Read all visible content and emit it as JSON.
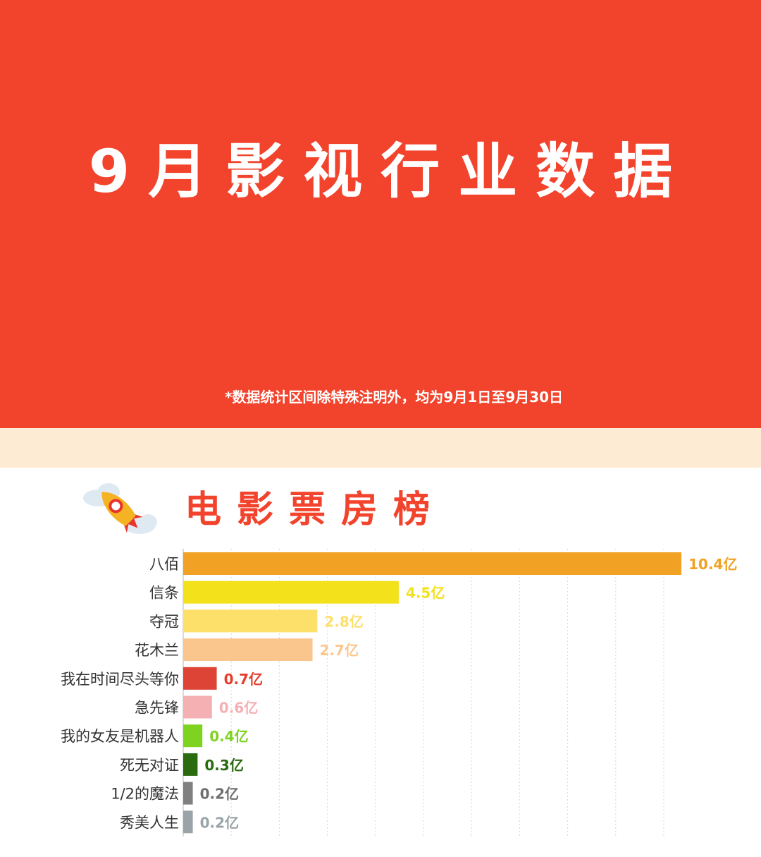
{
  "header": {
    "title": "9月影视行业数据",
    "note": "*数据统计区间除特殊注明外，均为9月1日至9月30日"
  },
  "section": {
    "title": "电影票房榜",
    "icon": "rocket-icon"
  },
  "chart_data": {
    "type": "bar",
    "orientation": "horizontal",
    "title": "电影票房榜",
    "unit": "亿",
    "categories": [
      "八佰",
      "信条",
      "夺冠",
      "花木兰",
      "我在时间尽头等你",
      "急先锋",
      "我的女友是机器人",
      "死无对证",
      "1/2的魔法",
      "秀美人生"
    ],
    "values": [
      10.4,
      4.5,
      2.8,
      2.7,
      0.7,
      0.6,
      0.4,
      0.3,
      0.2,
      0.2
    ],
    "value_labels": [
      "10.4亿",
      "4.5亿",
      "2.8亿",
      "2.7亿",
      "0.7亿",
      "0.6亿",
      "0.4亿",
      "0.3亿",
      "0.2亿",
      "0.2亿"
    ],
    "colors": [
      "#f1a123",
      "#f3e11c",
      "#fde06a",
      "#fbc68e",
      "#de4436",
      "#f4b0b3",
      "#7ed321",
      "#2a6b10",
      "#808080",
      "#9aa3a8"
    ],
    "label_colors": [
      "#f1a123",
      "#f3e11c",
      "#fde06a",
      "#fbc68e",
      "#e63d2c",
      "#f4b0b3",
      "#7ed321",
      "#2a6b10",
      "#6f6f6f",
      "#9aa3a8"
    ],
    "grid": true,
    "xlim": [
      0,
      10.4
    ]
  }
}
